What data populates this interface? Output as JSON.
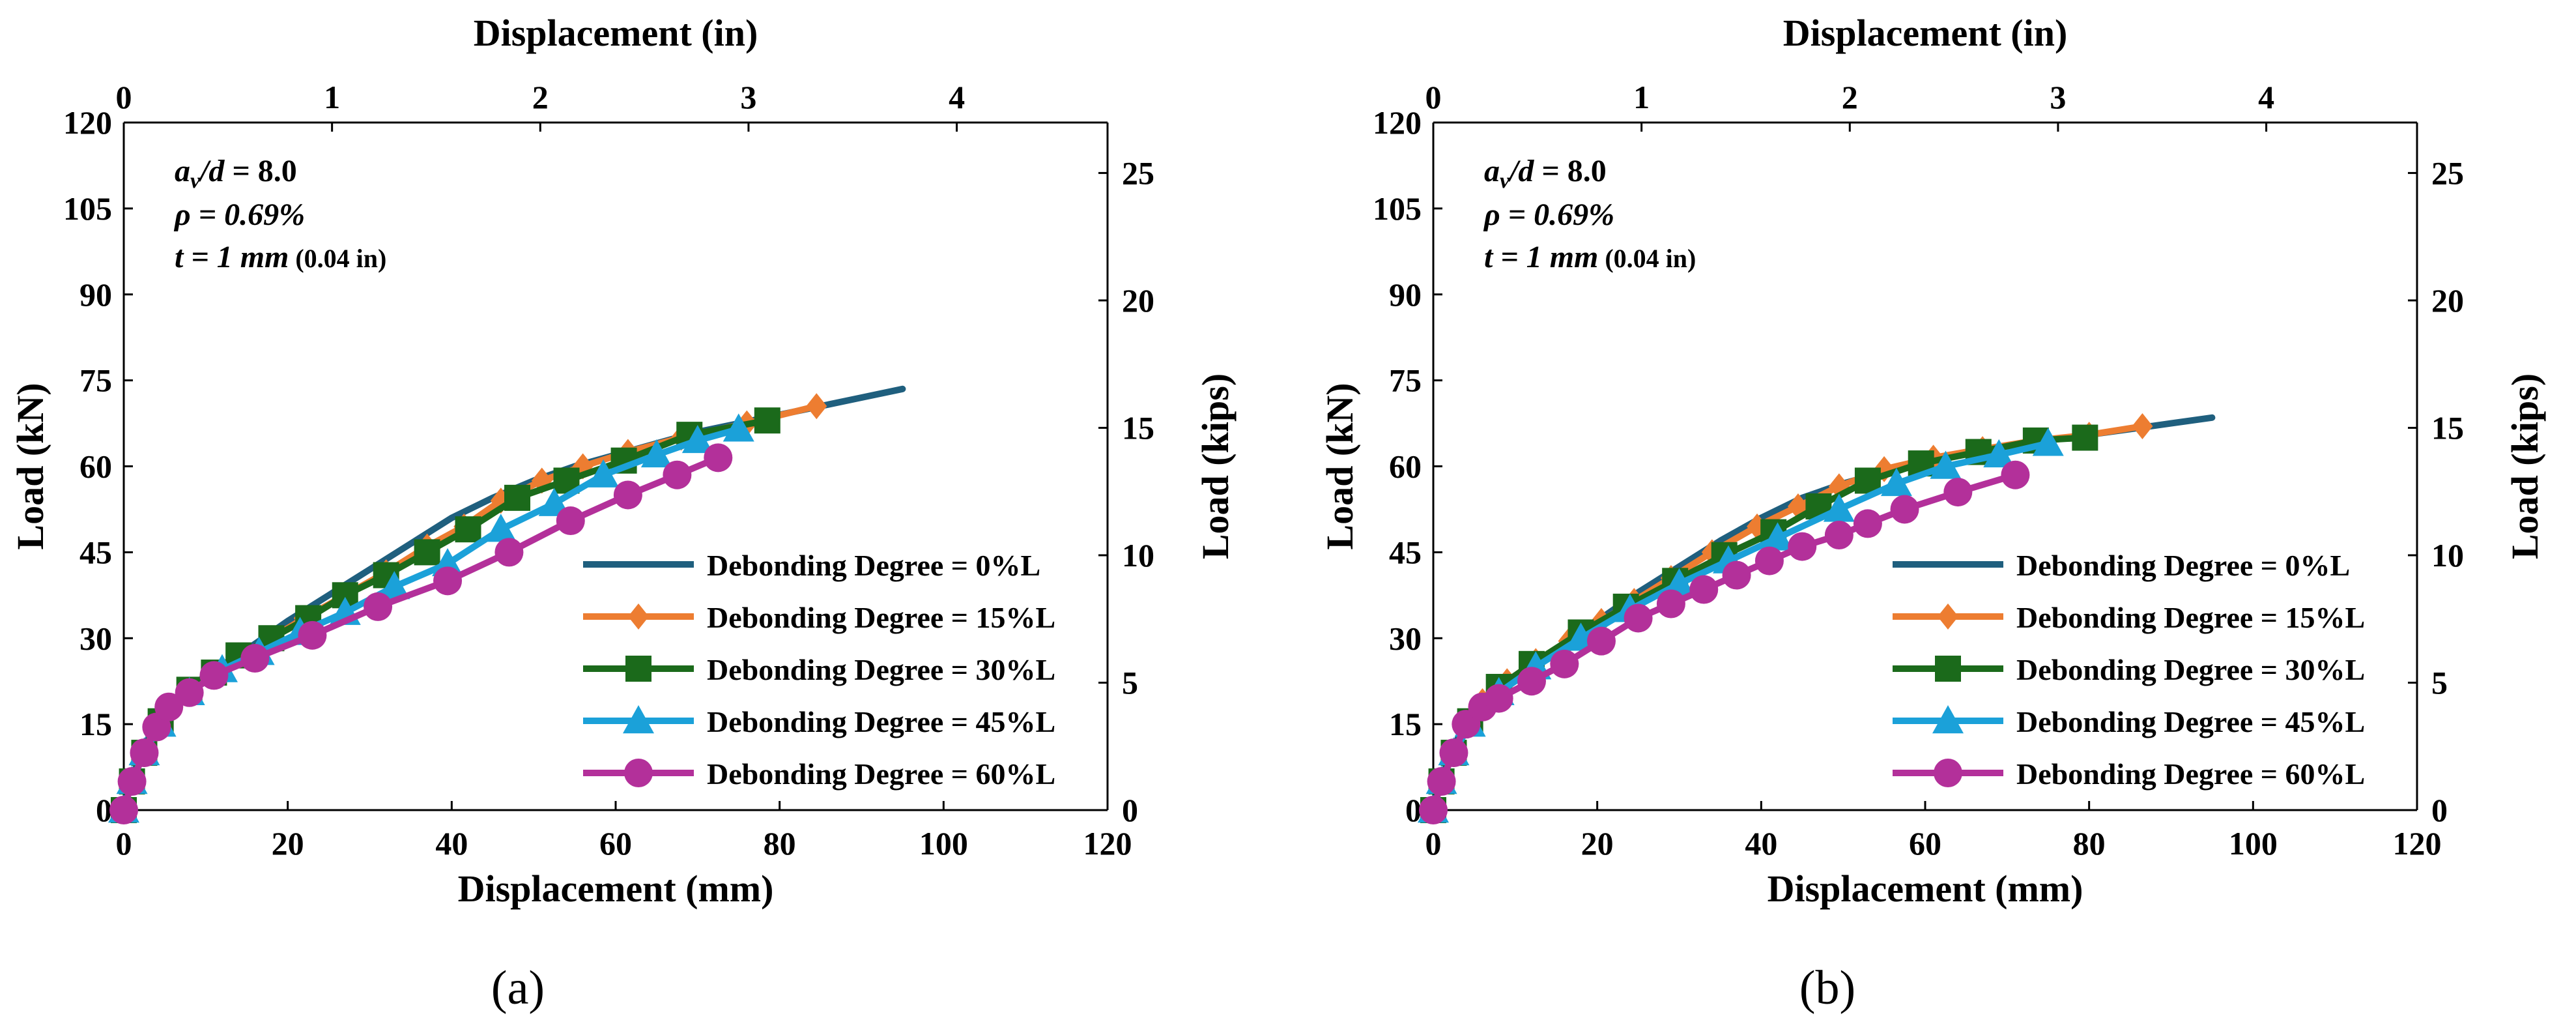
{
  "chart_data": [
    {
      "type": "line",
      "caption": "(a)",
      "title": "",
      "xlabel": "Displacement (mm)",
      "ylabel": "Load (kN)",
      "x2label": "Displacement (in)",
      "y2label": "Load (kips)",
      "xlim": [
        0,
        120
      ],
      "ylim": [
        0,
        120
      ],
      "x2lim": [
        0,
        4.724
      ],
      "y2lim": [
        0,
        26.98
      ],
      "xticks": [
        "0",
        "20",
        "40",
        "60",
        "80",
        "100",
        "120"
      ],
      "yticks": [
        "0",
        "15",
        "30",
        "45",
        "60",
        "75",
        "90",
        "105",
        "120"
      ],
      "x2ticks": [
        "0",
        "1",
        "2",
        "3",
        "4"
      ],
      "y2ticks": [
        "0",
        "5",
        "10",
        "15",
        "20",
        "25"
      ],
      "annotations": [
        "a_v/d = 8.0",
        "ρ = 0.69%",
        "t = 1 mm (0.04 in)"
      ],
      "legend_position": "lower-right",
      "series": [
        {
          "name": "Debonding Degree = 0%L",
          "color": "#1f5f7e",
          "marker": "none",
          "x": [
            0,
            1,
            2,
            4,
            7,
            10,
            15,
            20,
            25,
            30,
            35,
            40,
            45,
            50,
            55,
            60,
            65,
            70,
            75,
            80,
            85,
            90,
            95
          ],
          "y": [
            0,
            5,
            10,
            15,
            20,
            23.5,
            28,
            33,
            37.5,
            42,
            46.5,
            51,
            54.5,
            57.5,
            60,
            62,
            64,
            66,
            67.5,
            69,
            70.5,
            72,
            73.5
          ]
        },
        {
          "name": "Debonding Degree = 15%L",
          "color": "#ed7d31",
          "marker": "diamond",
          "x": [
            0,
            1,
            2.5,
            4,
            6,
            8,
            11,
            14,
            18,
            22,
            27,
            32,
            37,
            41.5,
            46,
            51,
            56,
            61.5,
            68,
            76,
            84.5
          ],
          "y": [
            0,
            5,
            10,
            15,
            18,
            21,
            24,
            27,
            30,
            33.5,
            37.5,
            41.5,
            46,
            49.5,
            54,
            57.5,
            60,
            62.5,
            65,
            67.5,
            70.5
          ]
        },
        {
          "name": "Debonding Degree = 30%L",
          "color": "#1b6a1b",
          "marker": "square",
          "x": [
            0,
            1,
            2.5,
            4.5,
            8,
            11,
            14,
            18,
            22.5,
            27,
            32,
            37,
            42,
            48,
            54,
            61,
            69,
            78.5
          ],
          "y": [
            0,
            5,
            10,
            15.5,
            21,
            24,
            27,
            30,
            33.5,
            37.5,
            41,
            45,
            49,
            54.5,
            57.5,
            61,
            65.5,
            68
          ]
        },
        {
          "name": "Debonding Degree = 45%L",
          "color": "#1ba1d9",
          "marker": "triangle",
          "x": [
            0,
            1,
            2.5,
            4.5,
            8,
            12,
            16.5,
            21.5,
            27,
            33,
            39.5,
            46,
            52.5,
            58.5,
            65,
            70,
            75
          ],
          "y": [
            0,
            5,
            10,
            15,
            20.5,
            24.5,
            27.5,
            31,
            34.5,
            39,
            43,
            49,
            53.5,
            58.5,
            62,
            64.5,
            66.5
          ]
        },
        {
          "name": "Debonding Degree = 60%L",
          "color": "#b3309a",
          "marker": "circle",
          "x": [
            0,
            1,
            2.5,
            4,
            5.5,
            8,
            11,
            16,
            23,
            31,
            39.5,
            47,
            54.5,
            61.5,
            67.5,
            72.5
          ],
          "y": [
            0,
            5,
            10,
            14.5,
            18,
            20.5,
            23.5,
            26.5,
            30.5,
            35.5,
            40,
            45,
            50.5,
            55,
            58.5,
            61.5
          ]
        }
      ]
    },
    {
      "type": "line",
      "caption": "(b)",
      "title": "",
      "xlabel": "Displacement (mm)",
      "ylabel": "Load (kN)",
      "x2label": "Displacement (in)",
      "y2label": "Load (kips)",
      "xlim": [
        0,
        120
      ],
      "ylim": [
        0,
        120
      ],
      "x2lim": [
        0,
        4.724
      ],
      "y2lim": [
        0,
        26.98
      ],
      "xticks": [
        "0",
        "20",
        "40",
        "60",
        "80",
        "100",
        "120"
      ],
      "yticks": [
        "0",
        "15",
        "30",
        "45",
        "60",
        "75",
        "90",
        "105",
        "120"
      ],
      "x2ticks": [
        "0",
        "1",
        "2",
        "3",
        "4"
      ],
      "y2ticks": [
        "0",
        "5",
        "10",
        "15",
        "20",
        "25"
      ],
      "annotations": [
        "a_v/d = 8.0",
        "ρ = 0.69%",
        "t = 1 mm (0.04 in)"
      ],
      "legend_position": "lower-right",
      "series": [
        {
          "name": "Debonding Degree = 0%L",
          "color": "#1f5f7e",
          "marker": "none",
          "x": [
            0,
            1,
            2,
            4,
            7,
            10,
            15,
            20,
            25,
            30,
            35,
            40,
            45,
            50,
            55,
            60,
            65,
            70,
            75,
            80,
            85,
            90,
            95
          ],
          "y": [
            0,
            5,
            10,
            15,
            20,
            23.5,
            28,
            33,
            38,
            42.5,
            47,
            51,
            54.5,
            57,
            59,
            61,
            62.5,
            63.5,
            64.5,
            65.5,
            66.5,
            67.5,
            68.5
          ]
        },
        {
          "name": "Debonding Degree = 15%L",
          "color": "#ed7d31",
          "marker": "diamond",
          "x": [
            0,
            1,
            2.5,
            4,
            6,
            9,
            12.5,
            16.5,
            20.5,
            24.5,
            29,
            34,
            39.5,
            44.5,
            49.5,
            55,
            61,
            67,
            73.5,
            80,
            86.5
          ],
          "y": [
            0,
            5,
            10,
            15,
            19,
            22.5,
            26,
            29.5,
            33,
            36.5,
            40.5,
            45,
            49.5,
            53,
            56.5,
            59.5,
            61.5,
            63,
            64.5,
            65.5,
            67
          ]
        },
        {
          "name": "Debonding Degree = 30%L",
          "color": "#1b6a1b",
          "marker": "square",
          "x": [
            0,
            1,
            2.5,
            4.5,
            8,
            12,
            18,
            23.5,
            29.5,
            35.5,
            41.5,
            47,
            53,
            59.5,
            66.5,
            73.5,
            79.5
          ],
          "y": [
            0,
            5,
            10,
            15.5,
            21.5,
            25.5,
            31,
            35.5,
            40,
            44.5,
            48.5,
            53,
            57.5,
            60.5,
            62.5,
            64.5,
            65
          ]
        },
        {
          "name": "Debonding Degree = 45%L",
          "color": "#1ba1d9",
          "marker": "triangle",
          "x": [
            0,
            1,
            2.5,
            4.5,
            8,
            12.5,
            18,
            24,
            30,
            36,
            42,
            49.5,
            56.5,
            62.5,
            69,
            75
          ],
          "y": [
            0,
            5,
            10,
            15,
            20.5,
            25,
            30,
            35,
            39.5,
            43.5,
            47.5,
            52.5,
            57,
            60,
            62,
            64
          ]
        },
        {
          "name": "Debonding Degree = 60%L",
          "color": "#b3309a",
          "marker": "circle",
          "x": [
            0,
            1,
            2.5,
            4,
            6,
            8,
            12,
            16,
            20.5,
            25,
            29,
            33,
            37,
            41,
            45,
            49.5,
            53,
            57.5,
            64,
            71
          ],
          "y": [
            0,
            5,
            10,
            15,
            18,
            19.5,
            22.5,
            25.5,
            29.5,
            33.5,
            36,
            38.5,
            41,
            43.5,
            46,
            48,
            50,
            52.5,
            55.5,
            58.5
          ]
        }
      ]
    }
  ]
}
